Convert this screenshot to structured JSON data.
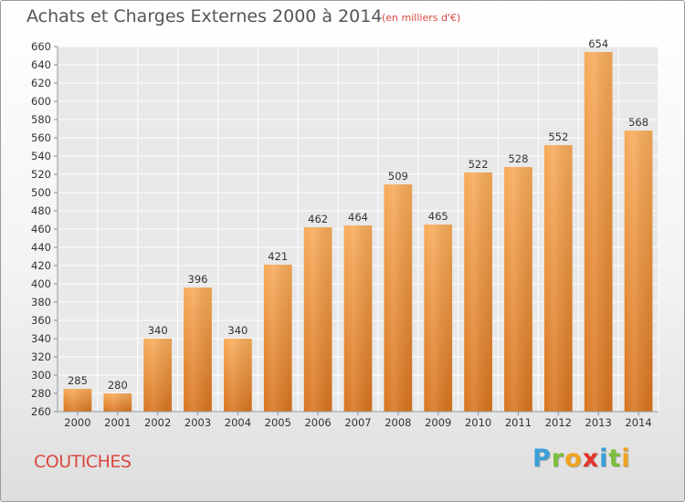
{
  "header": {
    "title": "Achats et Charges Externes 2000 à 2014",
    "subtitle": "(en milliers d'€)"
  },
  "footer": {
    "commune": "COUTICHES",
    "brand_letters": [
      {
        "ch": "P",
        "color": "#3a9fd8"
      },
      {
        "ch": "r",
        "color": "#7cbf3a"
      },
      {
        "ch": "o",
        "color": "#f0a321"
      },
      {
        "ch": "x",
        "color": "#e2332c"
      },
      {
        "ch": "i",
        "color": "#3a9fd8"
      },
      {
        "ch": "t",
        "color": "#7cbf3a"
      },
      {
        "ch": "i",
        "color": "#f0a321"
      }
    ]
  },
  "chart_data": {
    "type": "bar",
    "title": "Achats et Charges Externes 2000 à 2014",
    "subtitle": "(en milliers d'€)",
    "categories": [
      "2000",
      "2001",
      "2002",
      "2003",
      "2004",
      "2005",
      "2006",
      "2007",
      "2008",
      "2009",
      "2010",
      "2011",
      "2012",
      "2013",
      "2014"
    ],
    "values": [
      285,
      280,
      340,
      396,
      340,
      421,
      462,
      464,
      509,
      465,
      522,
      528,
      552,
      654,
      568
    ],
    "ylim": [
      260,
      660
    ],
    "ytick_step": 20,
    "grid": true,
    "bar_color_top": "#f7ab5a",
    "bar_color_bottom": "#d8741e"
  }
}
